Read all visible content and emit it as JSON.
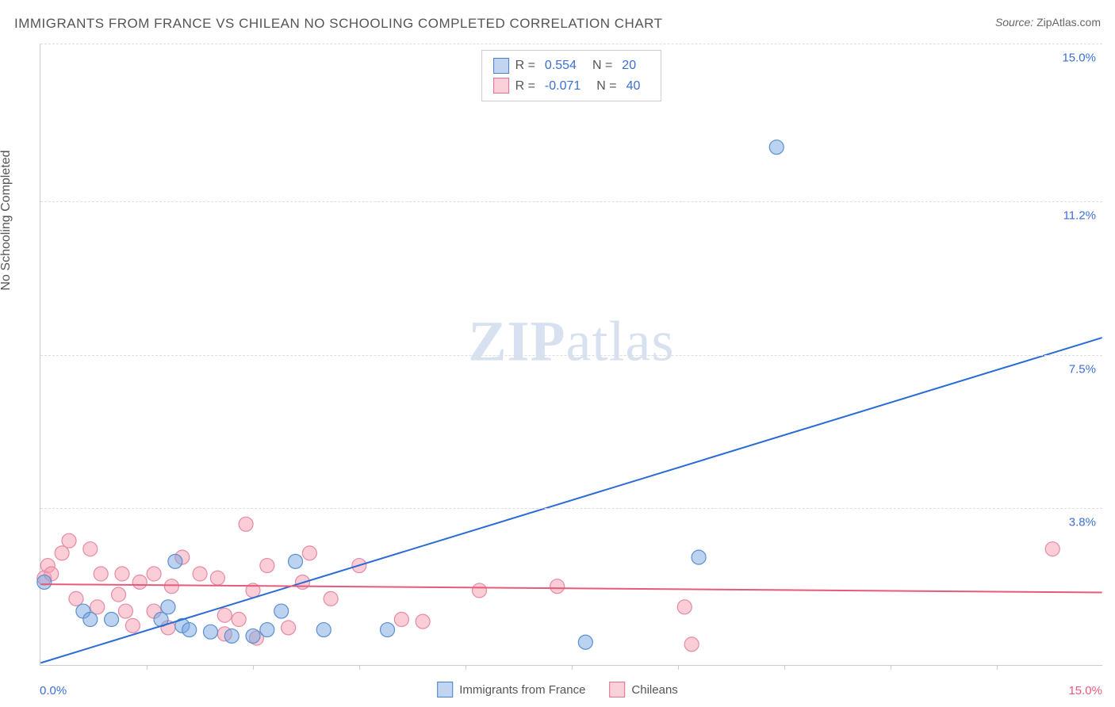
{
  "title": "IMMIGRANTS FROM FRANCE VS CHILEAN NO SCHOOLING COMPLETED CORRELATION CHART",
  "source_label": "Source:",
  "source_value": "ZipAtlas.com",
  "y_axis_label": "No Schooling Completed",
  "watermark_zip": "ZIP",
  "watermark_atlas": "atlas",
  "chart": {
    "type": "scatter",
    "xlim": [
      0,
      15
    ],
    "ylim": [
      0,
      15
    ],
    "x_min_label": "0.0%",
    "x_max_label": "15.0%",
    "y_ticks": [
      3.8,
      7.5,
      11.2,
      15.0
    ],
    "y_tick_labels": [
      "3.8%",
      "7.5%",
      "11.2%",
      "15.0%"
    ],
    "x_tick_positions": [
      1.5,
      3.0,
      4.5,
      6.0,
      7.5,
      9.0,
      10.5,
      12.0,
      13.5
    ],
    "grid_color": "#dddddd",
    "background_color": "#ffffff",
    "series": [
      {
        "name": "Immigrants from France",
        "color_fill": "rgba(120,165,225,0.5)",
        "color_stroke": "#5a8fd0",
        "marker_radius": 9,
        "r_label": "R =",
        "r_value": "0.554",
        "n_label": "N =",
        "n_value": "20",
        "points": [
          [
            0.05,
            2.0
          ],
          [
            0.6,
            1.3
          ],
          [
            0.7,
            1.1
          ],
          [
            1.0,
            1.1
          ],
          [
            1.7,
            1.1
          ],
          [
            1.8,
            1.4
          ],
          [
            1.9,
            2.5
          ],
          [
            2.0,
            0.95
          ],
          [
            2.1,
            0.85
          ],
          [
            2.4,
            0.8
          ],
          [
            2.7,
            0.7
          ],
          [
            3.0,
            0.7
          ],
          [
            3.2,
            0.85
          ],
          [
            3.4,
            1.3
          ],
          [
            3.6,
            2.5
          ],
          [
            4.0,
            0.85
          ],
          [
            4.9,
            0.85
          ],
          [
            7.7,
            0.55
          ],
          [
            9.3,
            2.6
          ],
          [
            10.4,
            12.5
          ]
        ],
        "trend": {
          "x1": 0,
          "y1": 0.05,
          "x2": 15,
          "y2": 7.9,
          "color": "#2a6bd4",
          "width": 2
        }
      },
      {
        "name": "Chileans",
        "color_fill": "rgba(245,155,175,0.5)",
        "color_stroke": "#e58aa2",
        "marker_radius": 9,
        "r_label": "R =",
        "r_value": "-0.071",
        "n_label": "N =",
        "n_value": "40",
        "points": [
          [
            0.05,
            2.1
          ],
          [
            0.1,
            2.4
          ],
          [
            0.15,
            2.2
          ],
          [
            0.3,
            2.7
          ],
          [
            0.4,
            3.0
          ],
          [
            0.5,
            1.6
          ],
          [
            0.7,
            2.8
          ],
          [
            0.8,
            1.4
          ],
          [
            0.85,
            2.2
          ],
          [
            1.1,
            1.7
          ],
          [
            1.15,
            2.2
          ],
          [
            1.2,
            1.3
          ],
          [
            1.3,
            0.95
          ],
          [
            1.4,
            2.0
          ],
          [
            1.6,
            1.3
          ],
          [
            1.6,
            2.2
          ],
          [
            1.8,
            0.9
          ],
          [
            1.85,
            1.9
          ],
          [
            2.0,
            2.6
          ],
          [
            2.25,
            2.2
          ],
          [
            2.5,
            2.1
          ],
          [
            2.6,
            1.2
          ],
          [
            2.6,
            0.75
          ],
          [
            2.8,
            1.1
          ],
          [
            2.9,
            3.4
          ],
          [
            3.0,
            1.8
          ],
          [
            3.05,
            0.65
          ],
          [
            3.2,
            2.4
          ],
          [
            3.5,
            0.9
          ],
          [
            3.7,
            2.0
          ],
          [
            3.8,
            2.7
          ],
          [
            4.1,
            1.6
          ],
          [
            4.5,
            2.4
          ],
          [
            5.1,
            1.1
          ],
          [
            5.4,
            1.05
          ],
          [
            6.2,
            1.8
          ],
          [
            7.3,
            1.9
          ],
          [
            9.1,
            1.4
          ],
          [
            9.2,
            0.5
          ],
          [
            14.3,
            2.8
          ]
        ],
        "trend": {
          "x1": 0,
          "y1": 1.95,
          "x2": 15,
          "y2": 1.75,
          "color": "#e85a7a",
          "width": 2
        }
      }
    ]
  },
  "bottom_legend": {
    "series1": "Immigrants from France",
    "series2": "Chileans"
  }
}
